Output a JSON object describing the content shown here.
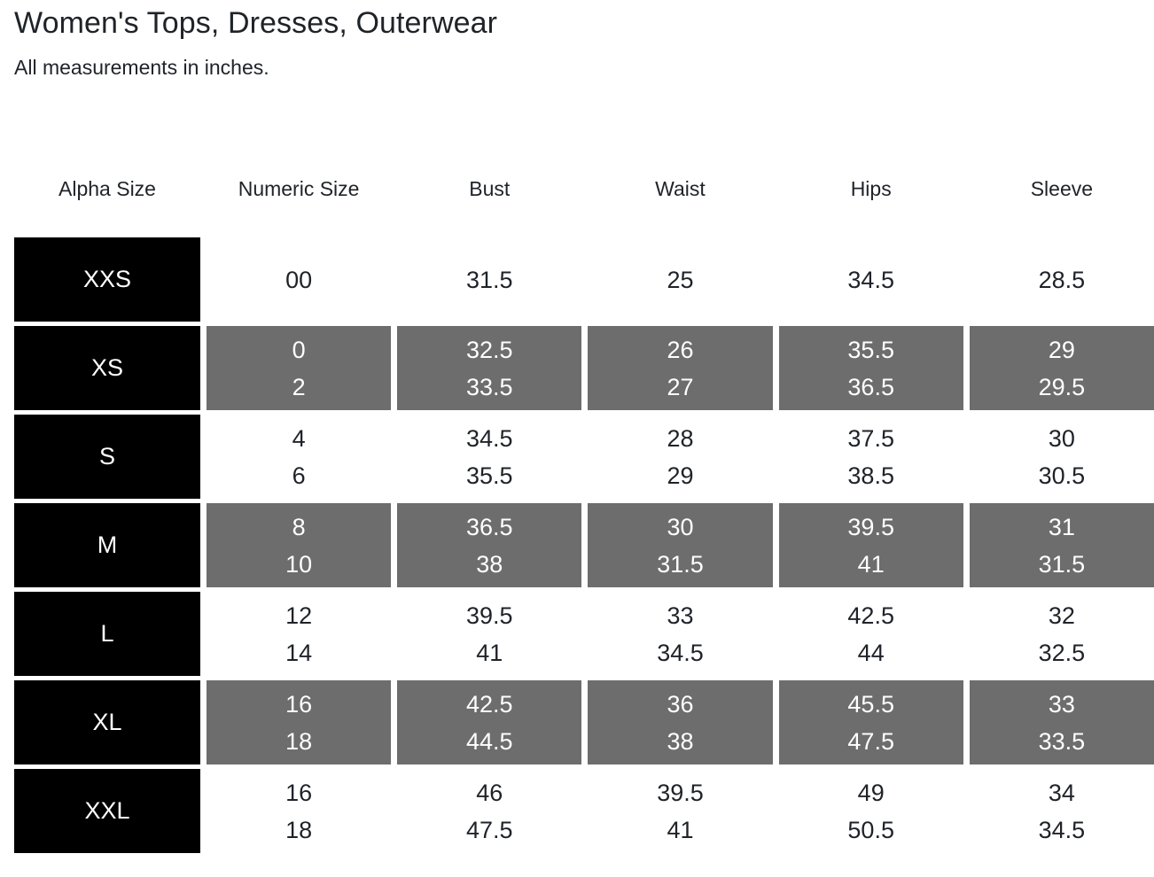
{
  "page": {
    "title": "Women's Tops, Dresses, Outerwear",
    "subtitle": "All measurements in inches."
  },
  "table": {
    "columns": [
      "Alpha Size",
      "Numeric Size",
      "Bust",
      "Waist",
      "Hips",
      "Sleeve"
    ],
    "rows": [
      {
        "alpha": "XXS",
        "numeric": [
          "00"
        ],
        "bust": [
          "31.5"
        ],
        "waist": [
          "25"
        ],
        "hips": [
          "34.5"
        ],
        "sleeve": [
          "28.5"
        ]
      },
      {
        "alpha": "XS",
        "numeric": [
          "0",
          "2"
        ],
        "bust": [
          "32.5",
          "33.5"
        ],
        "waist": [
          "26",
          "27"
        ],
        "hips": [
          "35.5",
          "36.5"
        ],
        "sleeve": [
          "29",
          "29.5"
        ]
      },
      {
        "alpha": "S",
        "numeric": [
          "4",
          "6"
        ],
        "bust": [
          "34.5",
          "35.5"
        ],
        "waist": [
          "28",
          "29"
        ],
        "hips": [
          "37.5",
          "38.5"
        ],
        "sleeve": [
          "30",
          "30.5"
        ]
      },
      {
        "alpha": "M",
        "numeric": [
          "8",
          "10"
        ],
        "bust": [
          "36.5",
          "38"
        ],
        "waist": [
          "30",
          "31.5"
        ],
        "hips": [
          "39.5",
          "41"
        ],
        "sleeve": [
          "31",
          "31.5"
        ]
      },
      {
        "alpha": "L",
        "numeric": [
          "12",
          "14"
        ],
        "bust": [
          "39.5",
          "41"
        ],
        "waist": [
          "33",
          "34.5"
        ],
        "hips": [
          "42.5",
          "44"
        ],
        "sleeve": [
          "32",
          "32.5"
        ]
      },
      {
        "alpha": "XL",
        "numeric": [
          "16",
          "18"
        ],
        "bust": [
          "42.5",
          "44.5"
        ],
        "waist": [
          "36",
          "38"
        ],
        "hips": [
          "45.5",
          "47.5"
        ],
        "sleeve": [
          "33",
          "33.5"
        ]
      },
      {
        "alpha": "XXL",
        "numeric": [
          "16",
          "18"
        ],
        "bust": [
          "46",
          "47.5"
        ],
        "waist": [
          "39.5",
          "41"
        ],
        "hips": [
          "49",
          "50.5"
        ],
        "sleeve": [
          "34",
          "34.5"
        ]
      }
    ]
  },
  "colors": {
    "page_bg": "#ffffff",
    "alpha_cell_bg": "#000000",
    "shaded_cell_bg": "#6d6d6d",
    "text_dark": "#1f2329",
    "text_light": "#ffffff"
  }
}
